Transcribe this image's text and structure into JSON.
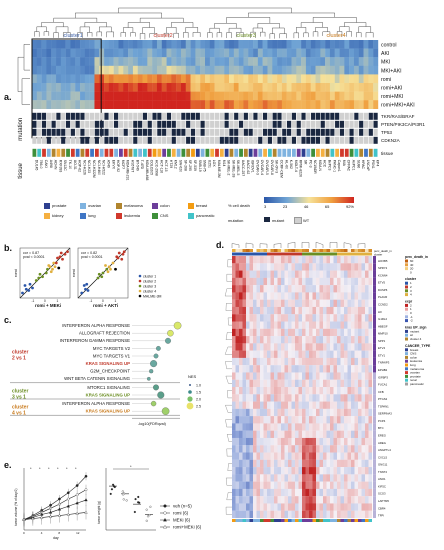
{
  "figure": {
    "panels": [
      "a.",
      "b.",
      "c.",
      "d.",
      "e."
    ]
  },
  "panel_a": {
    "clusters": [
      {
        "label": "cluster1",
        "color": "#3a5fa8"
      },
      {
        "label": "cluster2",
        "color": "#c0392b"
      },
      {
        "label": "cluster3",
        "color": "#6b8e23"
      },
      {
        "label": "cluster4",
        "color": "#c8791a"
      }
    ],
    "conditions": [
      "control",
      "AKI",
      "MKI",
      "MKI+AKI",
      "romi",
      "romi+AKI",
      "romi+MKI",
      "romi+MKI+AKI"
    ],
    "mutation_rows": [
      "TKR/RAS/BRAF",
      "PTEN/PIK3CA/PI3R1",
      "TP53",
      "CDKN2A"
    ],
    "row_side_labels": [
      "mutation",
      "tissue"
    ],
    "tissue_row_label": "tissue",
    "tissue_legend": [
      {
        "label": "prostate",
        "color": "#2e3f8f"
      },
      {
        "label": "ovarian",
        "color": "#7fb3e0"
      },
      {
        "label": "melanoma",
        "color": "#b1852e"
      },
      {
        "label": "colon",
        "color": "#6c3d9a"
      },
      {
        "label": "breast",
        "color": "#f39c12"
      },
      {
        "label": "kidney",
        "color": "#f5b041"
      },
      {
        "label": "lung",
        "color": "#3f76c5"
      },
      {
        "label": "leukemia",
        "color": "#d1392c"
      },
      {
        "label": "CNS",
        "color": "#3e8f3a"
      },
      {
        "label": "pancreatic",
        "color": "#41c3c9"
      }
    ],
    "color_scale": {
      "title": "% cell death",
      "ticks": [
        "3",
        "23",
        "46",
        "65",
        "92%"
      ],
      "colors": [
        "#2b56a8",
        "#6fa3d4",
        "#f6e29a",
        "#f0a040",
        "#d0251f"
      ]
    },
    "mutation_legend": {
      "title": "mutation",
      "items": [
        {
          "label": "mutant",
          "color": "#1a2740"
        },
        {
          "label": "WT",
          "color": "#d0d0d0"
        }
      ]
    },
    "cell_lines": [
      "DU145",
      "786-0",
      "CAKI",
      "A498",
      "ACHN",
      "RXF393",
      "SN12C",
      "TK-10",
      "UO-31",
      "HOP-62",
      "NCI-H226",
      "NCI-H23",
      "NCI-H322M",
      "NCI-H460",
      "NCI-H522",
      "A549",
      "EKVX",
      "HOP-92",
      "MCF7",
      "MDA-MB-231",
      "HS578T",
      "BT-549",
      "T-47D",
      "MDA-MB-468",
      "COLO205",
      "HCC-2998",
      "HCT-116",
      "HCT-15",
      "HT29",
      "KM12",
      "SW-620",
      "SF-268",
      "SF-295",
      "SF-539",
      "SNB-19",
      "SNB-75",
      "U251",
      "LOX",
      "MALME-3M",
      "M14",
      "SK-MEL-2",
      "SK-MEL-28",
      "SK-MEL-5",
      "UACC-257",
      "UACC-62",
      "IGROV1",
      "OVCAR-3",
      "OVCAR-4",
      "OVCAR-5",
      "OVCAR-8",
      "SK-OV-3",
      "CCRF-CEM",
      "HL-60",
      "K-562",
      "MOLT-4",
      "RPMI-8226",
      "SR",
      "PC-3",
      "NCI/ADR",
      "MDA-N",
      "HCC",
      "BxPC3",
      "PANC-1",
      "Capan1",
      "MIA",
      "CFPAC",
      "AsPC1",
      "SU86",
      "HPAC",
      "LNCaP",
      "PSN1",
      "KP4"
    ]
  },
  "panel_b": {
    "chart_data": [
      {
        "type": "scatter",
        "annotation": [
          "cor = 0.87",
          "pval < 0.0001"
        ],
        "xlabel": "romi + MEKi",
        "ylabel": "romi",
        "xlim": [
          -2,
          2
        ],
        "ylim": [
          -2,
          2
        ],
        "series": [
          {
            "name": "cluster 1",
            "color": "#2b56a8",
            "points": [
              [
                -1.8,
                -1.6
              ],
              [
                -1.5,
                -1.3
              ],
              [
                -1.3,
                -1.4
              ],
              [
                -1.2,
                -0.9
              ],
              [
                -1.6,
                -1.0
              ],
              [
                -1.0,
                -1.2
              ]
            ]
          },
          {
            "name": "cluster 2",
            "color": "#c0392b",
            "points": [
              [
                1.2,
                1.3
              ],
              [
                1.4,
                1.1
              ],
              [
                1.6,
                1.5
              ],
              [
                1.0,
                1.2
              ],
              [
                1.8,
                1.7
              ],
              [
                1.3,
                1.6
              ],
              [
                0.9,
                0.8
              ]
            ]
          },
          {
            "name": "cluster 3",
            "color": "#6b8e23",
            "points": [
              [
                -0.5,
                -0.4
              ],
              [
                -0.2,
                -0.3
              ],
              [
                0.1,
                0.0
              ],
              [
                -0.4,
                -0.1
              ],
              [
                0.2,
                0.3
              ],
              [
                -0.7,
                -0.6
              ]
            ]
          },
          {
            "name": "cluster 4",
            "color": "#e0b040",
            "points": [
              [
                0.4,
                0.5
              ],
              [
                0.6,
                0.3
              ],
              [
                0.7,
                0.8
              ],
              [
                0.5,
                0.1
              ],
              [
                0.3,
                0.6
              ],
              [
                0.8,
                0.5
              ]
            ]
          },
          {
            "name": "MALME-3M",
            "color": "#000000",
            "points": [
              [
                1.1,
                0.4
              ]
            ]
          }
        ]
      },
      {
        "type": "scatter",
        "annotation": [
          "cor = 0.82",
          "pval < 0.0001"
        ],
        "xlabel": "romi + AKTi",
        "ylabel": "romi",
        "xlim": [
          -2,
          2
        ],
        "ylim": [
          -2,
          2
        ],
        "series": [
          {
            "name": "cluster 1",
            "color": "#2b56a8",
            "points": [
              [
                -1.7,
                -1.6
              ],
              [
                -1.4,
                -1.3
              ],
              [
                -1.2,
                -1.4
              ],
              [
                -1.3,
                -0.9
              ],
              [
                -1.5,
                -1.0
              ]
            ]
          },
          {
            "name": "cluster 2",
            "color": "#c0392b",
            "points": [
              [
                1.1,
                1.3
              ],
              [
                1.5,
                1.1
              ],
              [
                1.6,
                1.5
              ],
              [
                1.2,
                1.2
              ],
              [
                1.7,
                1.7
              ],
              [
                1.3,
                1.6
              ]
            ]
          },
          {
            "name": "cluster 3",
            "color": "#6b8e23",
            "points": [
              [
                -0.4,
                -0.4
              ],
              [
                -0.1,
                -0.3
              ],
              [
                0.0,
                0.0
              ],
              [
                -0.3,
                -0.1
              ],
              [
                0.3,
                0.3
              ]
            ]
          },
          {
            "name": "cluster 4",
            "color": "#e0b040",
            "points": [
              [
                0.5,
                0.5
              ],
              [
                0.6,
                0.3
              ],
              [
                0.8,
                0.8
              ],
              [
                0.4,
                0.1
              ],
              [
                0.2,
                0.6
              ]
            ]
          },
          {
            "name": "MALME-3M",
            "color": "#000000",
            "points": [
              [
                1.0,
                0.3
              ]
            ]
          }
        ]
      }
    ],
    "legend": [
      "cluster 1",
      "cluster 2",
      "cluster 3",
      "cluster 4",
      "MALME-3M"
    ]
  },
  "panel_c": {
    "groups": [
      {
        "label": [
          "cluster",
          "2 vs 1"
        ],
        "color": "#c0392b",
        "pathways": [
          "INTERFERON ALPHA RESPONSE",
          "ALLOGRAFT REJECTION",
          "INTERFERON GAMMA RESPONSE",
          "MYC TARGETS V2",
          "MYC TARGETS V1",
          "KRAS SIGNALING UP",
          "G2M_CHECKPOINT",
          "WNT BETA CATENIN SIGNALING"
        ]
      },
      {
        "label": [
          "cluster",
          "3 vs 1"
        ],
        "color": "#6b8e23",
        "pathways": [
          "MTORC1 SIGNALING",
          "KRAS SIGNALING UP"
        ]
      },
      {
        "label": [
          "cluster",
          "4 vs 1"
        ],
        "color": "#c8791a",
        "pathways": [
          "INTERFERON ALPHA RESPONSE",
          "KRAS SIGNALING UP"
        ]
      }
    ],
    "highlight_pathway": "KRAS SIGNALING UP",
    "xlabel": "-log10(FDRqval)",
    "nes_legend": {
      "title": "NES",
      "values": [
        "1.0",
        "1.5",
        "2.0",
        "2.5"
      ]
    }
  },
  "panel_d": {
    "legend_sections": [
      {
        "title": "perc_death_in",
        "items": [
          "60",
          "40",
          "20",
          "0"
        ]
      },
      {
        "title": "cluster",
        "items": [
          "1",
          "2",
          "3",
          "4"
        ]
      },
      {
        "title": "expr",
        "items": [
          "2",
          "1",
          "0",
          "-1",
          "-2"
        ]
      },
      {
        "title": "kras UP_sign",
        "items": [
          "mutant",
          "wt",
          "cluster 4"
        ]
      },
      {
        "title": "CANCER_TYPE",
        "items": [
          "breast",
          "CNS",
          "colon",
          "leukemia",
          "lung",
          "melanoma",
          "ovarian",
          "prostate",
          "renal",
          "pancreatic"
        ]
      }
    ],
    "header_labels": [
      "perc_death_in",
      "cluster"
    ],
    "gene_labels": [
      "HOXB5",
      "SPRY2",
      "KCNN4",
      "ETV5",
      "DUSP6",
      "PLAUR",
      "CCND2",
      "LIF",
      "IL1RL2",
      "HBEGF",
      "MMP10",
      "SPP1",
      "ETV4",
      "ETV1",
      "TNFAIP3",
      "EPHB2",
      "IGFBP3",
      "FUCA1",
      "CFB",
      "PTGS2",
      "TSPAN1",
      "SERPINA3",
      "PCP4",
      "BTC",
      "EREG",
      "AREG",
      "ANGPTL4",
      "CXCL5",
      "GNG11",
      "TNNT2",
      "ANO1",
      "KIF5C",
      "SCG3",
      "LAPTM5",
      "CBR4",
      "TFPI"
    ]
  },
  "panel_e": {
    "chart_data": [
      {
        "type": "line",
        "xlabel": "day",
        "ylabel": "tumor volume (% of day 0)",
        "x": [
          0,
          2,
          4,
          6,
          8,
          10,
          12,
          14
        ],
        "series": [
          {
            "name": "veh (n=5)",
            "marker": "circle",
            "values": [
              100,
              140,
              190,
              240,
              300,
              360,
              430,
              520
            ]
          },
          {
            "name": "romi (6)",
            "marker": "circle-open",
            "values": [
              100,
              130,
              170,
              210,
              250,
              300,
              340,
              390
            ]
          },
          {
            "name": "MEKi (6)",
            "marker": "triangle",
            "values": [
              100,
              120,
              150,
              170,
              200,
              230,
              260,
              290
            ]
          },
          {
            "name": "romi+MEKi (6)",
            "marker": "triangle-open",
            "values": [
              100,
              110,
              120,
              130,
              140,
              150,
              160,
              170
            ]
          }
        ]
      },
      {
        "type": "scatter",
        "ylabel": "tumor weight (g)",
        "categories": [
          "veh",
          "romi",
          "MEKi",
          "romi+MEKi"
        ],
        "values": [
          0.85,
          0.7,
          0.5,
          0.3
        ]
      }
    ],
    "legend": [
      "veh (n=5)",
      "romi (6)",
      "MEKi (6)",
      "romi+MEKi (6)"
    ],
    "significance": "*"
  }
}
